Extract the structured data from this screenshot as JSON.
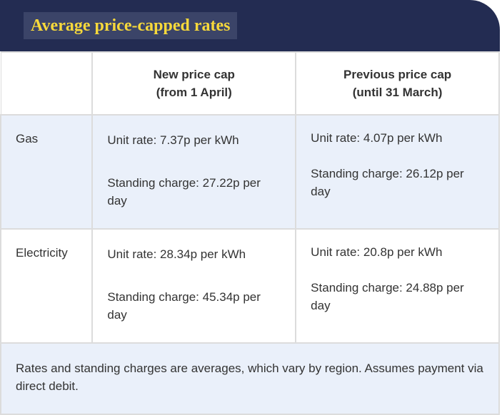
{
  "header": {
    "title": "Average price-capped rates"
  },
  "table": {
    "columns": [
      "",
      "New price cap\n(from 1 April)",
      "Previous price cap\n(until 31 March)"
    ],
    "col_headers": {
      "new": [
        "New price cap",
        "(from 1 April)"
      ],
      "previous": [
        "Previous price cap",
        "(until 31 March)"
      ]
    },
    "rows": [
      {
        "label": "Gas",
        "new_unit": "Unit rate: 7.37p per kWh",
        "new_standing": "Standing charge: 27.22p per day",
        "prev_unit": "Unit rate: 4.07p per kWh",
        "prev_standing": "Standing charge: 26.12p per day"
      },
      {
        "label": "Electricity",
        "new_unit": "Unit rate: 28.34p per kWh",
        "new_standing": "Standing charge: 45.34p per day",
        "prev_unit": "Unit rate: 20.8p per kWh",
        "prev_standing": "Standing charge: 24.88p per day"
      }
    ],
    "footnote": "Rates and standing charges are averages, which vary by region. Assumes payment via direct debit."
  },
  "colors": {
    "header_bg": "#232c52",
    "title_bg": "#3b4468",
    "title_text": "#f7d93b",
    "row_tint": "#eaf0fa",
    "border": "#dcdcdc"
  }
}
